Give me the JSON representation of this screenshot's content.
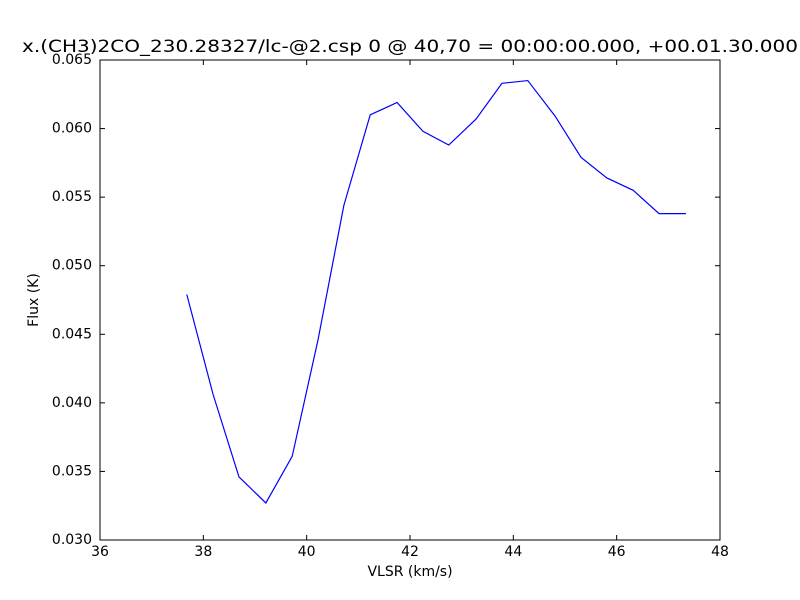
{
  "chart_data": {
    "type": "line",
    "title": "x.(CH3)2CO_230.28327/lc-@2.csp 0 @ 40,70 = 00:00:00.000, +00.01.30.000",
    "xlabel": "VLSR (km/s)",
    "ylabel": "Flux (K)",
    "x": [
      37.68,
      38.19,
      38.69,
      39.21,
      39.72,
      40.22,
      40.72,
      41.23,
      41.75,
      42.25,
      42.75,
      43.28,
      43.78,
      44.28,
      44.81,
      45.31,
      45.81,
      46.32,
      46.82,
      47.34
    ],
    "values": [
      0.0479,
      0.0406,
      0.0346,
      0.0327,
      0.0361,
      0.0446,
      0.0544,
      0.061,
      0.0619,
      0.0598,
      0.0588,
      0.0607,
      0.0633,
      0.0635,
      0.0609,
      0.0579,
      0.0564,
      0.0555,
      0.0538,
      0.0538
    ],
    "color": "#0000ff",
    "xlim": [
      36,
      48
    ],
    "xticks": [
      36,
      38,
      40,
      42,
      44,
      46,
      48
    ],
    "ylim": [
      0.03,
      0.065
    ],
    "yticks": [
      {
        "value": 0.03,
        "label": "0.030"
      },
      {
        "value": 0.035,
        "label": "0.035"
      },
      {
        "value": 0.04,
        "label": "0.040"
      },
      {
        "value": 0.045,
        "label": "0.045"
      },
      {
        "value": 0.05,
        "label": "0.050"
      },
      {
        "value": 0.055,
        "label": "0.055"
      },
      {
        "value": 0.06,
        "label": "0.060"
      },
      {
        "value": 0.065,
        "label": "0.065"
      }
    ],
    "grid": false
  }
}
